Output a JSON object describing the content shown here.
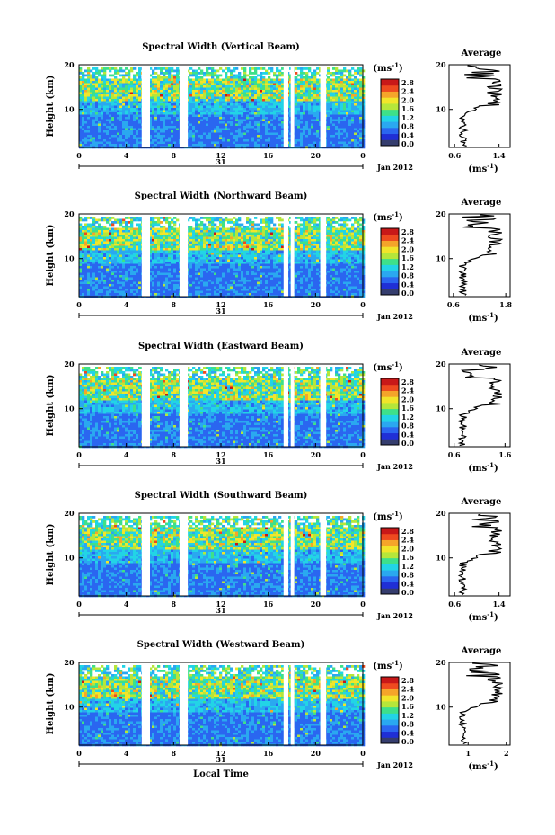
{
  "chart_data": [
    {
      "type": "heatmap",
      "title": "Spectral Width (Vertical Beam)",
      "ylabel": "Height (km)",
      "y_ticks": [
        "20",
        "10"
      ],
      "x_ticks": [
        "0",
        "4",
        "8",
        "12",
        "16",
        "20",
        "0"
      ],
      "day_label": "31",
      "date_label": "Jan 2012",
      "colorbar": {
        "unit": "(ms⁻¹)",
        "ticks": [
          "2.8",
          "2.4",
          "2.0",
          "1.6",
          "1.2",
          "0.8",
          "0.4",
          "0.0"
        ]
      },
      "profile": {
        "title": "Average",
        "x_ticks": [
          "0.6",
          "1.4"
        ],
        "xlim": [
          0.5,
          1.6
        ],
        "unit": "(ms⁻¹)",
        "y_ticks": [
          "20",
          "10"
        ]
      },
      "ylim": [
        1.5,
        20
      ],
      "xlim": [
        0,
        24
      ],
      "data_gaps_hours": [
        [
          5.3,
          6.0
        ],
        [
          8.5,
          9.2
        ],
        [
          17.3,
          17.7
        ],
        [
          17.9,
          18.2
        ],
        [
          20.4,
          20.9
        ]
      ]
    },
    {
      "type": "heatmap",
      "title": "Spectral Width (Northward Beam)",
      "ylabel": "Height (km)",
      "y_ticks": [
        "20",
        "10"
      ],
      "x_ticks": [
        "0",
        "4",
        "8",
        "12",
        "16",
        "20",
        "0"
      ],
      "day_label": "31",
      "date_label": "Jan 2012",
      "colorbar": {
        "unit": "(ms⁻¹)",
        "ticks": [
          "2.8",
          "2.4",
          "2.0",
          "1.6",
          "1.2",
          "0.8",
          "0.4",
          "0.0"
        ]
      },
      "profile": {
        "title": "Average",
        "x_ticks": [
          "0.6",
          "1.8"
        ],
        "xlim": [
          0.5,
          1.9
        ],
        "unit": "(ms⁻¹)",
        "y_ticks": [
          "20",
          "10"
        ]
      },
      "ylim": [
        1.5,
        20
      ],
      "xlim": [
        0,
        24
      ],
      "data_gaps_hours": [
        [
          5.3,
          6.0
        ],
        [
          8.5,
          9.2
        ],
        [
          17.3,
          17.7
        ],
        [
          17.9,
          18.2
        ],
        [
          20.4,
          20.9
        ]
      ]
    },
    {
      "type": "heatmap",
      "title": "Spectral Width (Eastward Beam)",
      "ylabel": "Height (km)",
      "y_ticks": [
        "20",
        "10"
      ],
      "x_ticks": [
        "0",
        "4",
        "8",
        "12",
        "16",
        "20",
        "0"
      ],
      "day_label": "31",
      "date_label": "Jan 2012",
      "colorbar": {
        "unit": "(ms⁻¹)",
        "ticks": [
          "2.8",
          "2.4",
          "2.0",
          "1.6",
          "1.2",
          "0.8",
          "0.4",
          "0.0"
        ]
      },
      "profile": {
        "title": "Average",
        "x_ticks": [
          "0.6",
          "1.6"
        ],
        "xlim": [
          0.5,
          1.7
        ],
        "unit": "(ms⁻¹)",
        "y_ticks": [
          "20",
          "10"
        ]
      },
      "ylim": [
        1.5,
        20
      ],
      "xlim": [
        0,
        24
      ],
      "data_gaps_hours": [
        [
          5.3,
          6.0
        ],
        [
          8.5,
          9.2
        ],
        [
          17.3,
          17.7
        ],
        [
          17.9,
          18.2
        ],
        [
          20.4,
          20.9
        ]
      ]
    },
    {
      "type": "heatmap",
      "title": "Spectral Width (Southward Beam)",
      "ylabel": "Height (km)",
      "y_ticks": [
        "20",
        "10"
      ],
      "x_ticks": [
        "0",
        "4",
        "8",
        "12",
        "16",
        "20",
        "0"
      ],
      "day_label": "31",
      "date_label": "Jan 2012",
      "colorbar": {
        "unit": "(ms⁻¹)",
        "ticks": [
          "2.8",
          "2.4",
          "2.0",
          "1.6",
          "1.2",
          "0.8",
          "0.4",
          "0.0"
        ]
      },
      "profile": {
        "title": "Average",
        "x_ticks": [
          "0.6",
          "1.4"
        ],
        "xlim": [
          0.5,
          1.6
        ],
        "unit": "(ms⁻¹)",
        "y_ticks": [
          "20",
          "10"
        ]
      },
      "ylim": [
        1.5,
        20
      ],
      "xlim": [
        0,
        24
      ],
      "data_gaps_hours": [
        [
          5.3,
          6.0
        ],
        [
          8.5,
          9.2
        ],
        [
          17.3,
          17.7
        ],
        [
          17.9,
          18.2
        ],
        [
          20.4,
          20.9
        ]
      ]
    },
    {
      "type": "heatmap",
      "title": "Spectral Width (Westward Beam)",
      "ylabel": "Height (km)",
      "y_ticks": [
        "20",
        "10"
      ],
      "x_ticks": [
        "0",
        "4",
        "8",
        "12",
        "16",
        "20",
        "0"
      ],
      "day_label": "31",
      "date_label": "Jan 2012",
      "xlabel": "Local Time",
      "colorbar": {
        "unit": "(ms⁻¹)",
        "ticks": [
          "2.8",
          "2.4",
          "2.0",
          "1.6",
          "1.2",
          "0.8",
          "0.4",
          "0.0"
        ]
      },
      "profile": {
        "title": "Average",
        "x_ticks": [
          "1",
          "2"
        ],
        "xlim": [
          0.5,
          2.1
        ],
        "unit": "(ms⁻¹)",
        "y_ticks": [
          "20",
          "10"
        ]
      },
      "ylim": [
        1.5,
        20
      ],
      "xlim": [
        0,
        24
      ],
      "data_gaps_hours": [
        [
          5.3,
          6.0
        ],
        [
          8.5,
          9.2
        ],
        [
          17.3,
          17.7
        ],
        [
          17.9,
          18.2
        ],
        [
          20.4,
          20.9
        ]
      ]
    }
  ],
  "colors": {
    "colormap": [
      "#353d6e",
      "#1f2fd6",
      "#2a66f0",
      "#2aa8f0",
      "#22d4e6",
      "#3ee08a",
      "#b6e63a",
      "#f2e52a",
      "#f5a52a",
      "#ee4a1f",
      "#c81818"
    ],
    "axis": "#000000",
    "profile_line": "#000000"
  }
}
